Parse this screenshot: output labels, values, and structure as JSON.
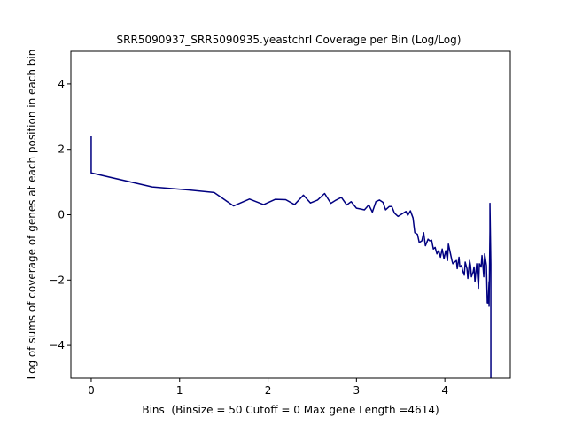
{
  "chart_data": {
    "type": "line",
    "title": "SRR5090937_SRR5090935.yeastchrI Coverage per Bin (Log/Log)",
    "xlabel": "Bins  (Binsize = 50 Cutoff = 0 Max gene Length =4614)",
    "ylabel": "Log of sums of coverage of genes at each position in each bin",
    "xlim": [
      -0.23,
      4.74
    ],
    "ylim": [
      -5,
      5
    ],
    "xticks": [
      0,
      1,
      2,
      3,
      4
    ],
    "yticks": [
      -4,
      -2,
      0,
      2,
      4
    ],
    "grid": false,
    "color": "#000080",
    "series": [
      {
        "x": [
          0.0,
          0.0,
          0.69,
          1.1,
          1.39,
          1.61,
          1.79,
          1.95,
          2.08,
          2.2,
          2.3,
          2.4,
          2.48,
          2.56,
          2.64,
          2.71,
          2.77,
          2.83,
          2.89,
          2.94,
          3.0,
          3.04,
          3.09,
          3.14,
          3.18,
          3.22,
          3.26,
          3.3,
          3.33,
          3.37,
          3.4,
          3.43,
          3.47,
          3.5,
          3.53,
          3.56,
          3.58,
          3.61,
          3.64,
          3.66,
          3.69,
          3.71,
          3.74,
          3.76,
          3.78,
          3.81,
          3.83,
          3.85,
          3.87,
          3.89,
          3.91,
          3.93,
          3.95,
          3.97,
          3.99,
          4.01,
          4.03,
          4.04,
          4.06,
          4.08,
          4.09,
          4.11,
          4.13,
          4.14,
          4.16,
          4.17,
          4.19,
          4.2,
          4.22,
          4.23,
          4.25,
          4.26,
          4.28,
          4.29,
          4.3,
          4.32,
          4.33,
          4.34,
          4.36,
          4.37,
          4.38,
          4.39,
          4.41,
          4.42,
          4.43,
          4.44,
          4.45,
          4.47,
          4.48,
          4.49,
          4.5,
          4.5,
          4.51,
          4.51,
          4.51,
          4.52,
          4.52,
          4.52
        ],
        "y": [
          2.4,
          1.28,
          0.85,
          0.76,
          0.68,
          0.27,
          0.48,
          0.31,
          0.47,
          0.46,
          0.31,
          0.6,
          0.36,
          0.45,
          0.65,
          0.35,
          0.45,
          0.53,
          0.3,
          0.4,
          0.2,
          0.18,
          0.15,
          0.3,
          0.08,
          0.4,
          0.45,
          0.38,
          0.15,
          0.25,
          0.25,
          0.05,
          -0.05,
          0.0,
          0.05,
          0.1,
          -0.02,
          0.12,
          -0.1,
          -0.55,
          -0.6,
          -0.85,
          -0.8,
          -0.55,
          -0.95,
          -0.75,
          -0.8,
          -0.78,
          -1.05,
          -1.0,
          -1.2,
          -1.1,
          -1.3,
          -1.05,
          -1.35,
          -1.1,
          -1.4,
          -0.9,
          -1.15,
          -1.4,
          -1.5,
          -1.45,
          -1.4,
          -1.65,
          -1.3,
          -1.6,
          -1.55,
          -1.7,
          -1.85,
          -1.45,
          -1.65,
          -1.95,
          -1.4,
          -1.55,
          -1.9,
          -1.75,
          -1.6,
          -2.05,
          -1.5,
          -1.9,
          -2.25,
          -1.5,
          -1.6,
          -1.25,
          -1.55,
          -1.9,
          -1.2,
          -1.55,
          -2.7,
          -2.7,
          -2.05,
          -2.8,
          -0.5,
          0.35,
          0.3,
          -1.5,
          -4.5,
          -5.5
        ]
      }
    ]
  }
}
